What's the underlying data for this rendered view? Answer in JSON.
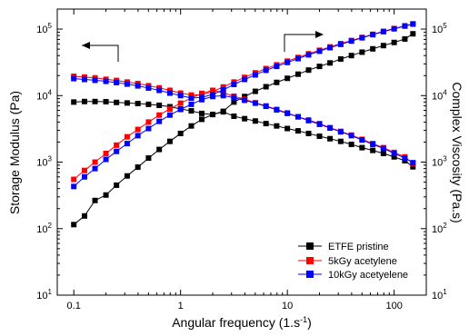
{
  "chart_data": {
    "type": "line",
    "xlabel": "Angular frequency (1.s",
    "xlabel_superscript": "-1",
    "xlabel_suffix": ")",
    "ylabel_left": "Storage Modulus (Pa)",
    "ylabel_right": "Complex Viscosity (Pa.s)",
    "x_scale": "log",
    "y_scale": "log",
    "xlim": [
      0.07,
      200
    ],
    "ylim": [
      10,
      200000
    ],
    "x_ticks": [
      {
        "value": 0.1,
        "label": "0.1"
      },
      {
        "value": 1,
        "label": "1"
      },
      {
        "value": 10,
        "label": "10"
      },
      {
        "value": 100,
        "label": "100"
      }
    ],
    "y_ticks": [
      {
        "value": 10,
        "base": "10",
        "exp": "1"
      },
      {
        "value": 100,
        "base": "10",
        "exp": "2"
      },
      {
        "value": 1000,
        "base": "10",
        "exp": "3"
      },
      {
        "value": 10000,
        "base": "10",
        "exp": "4"
      },
      {
        "value": 100000,
        "base": "10",
        "exp": "5"
      }
    ],
    "legend_position": "bottom-right",
    "grid": false,
    "x": [
      0.1,
      0.126,
      0.158,
      0.2,
      0.251,
      0.316,
      0.398,
      0.501,
      0.631,
      0.794,
      1,
      1.26,
      1.58,
      2,
      2.51,
      3.16,
      3.98,
      5.01,
      6.31,
      7.94,
      10,
      12.6,
      15.8,
      20,
      25.1,
      31.6,
      39.8,
      50.1,
      63.1,
      79.4,
      100,
      126,
      150
    ],
    "series": [
      {
        "name": "ETFE pristine",
        "color": "#000000",
        "modulus": [
          115,
          155,
          265,
          320,
          450,
          620,
          840,
          1150,
          1550,
          2050,
          2700,
          3500,
          4400,
          5200,
          5700,
          4900,
          4500,
          4150,
          3800,
          3500,
          3200,
          2950,
          2700,
          2450,
          2250,
          2050,
          1850,
          1650,
          1500,
          1350,
          1200,
          1050,
          850
        ],
        "viscosity": [
          8000,
          8150,
          8150,
          8100,
          7900,
          7750,
          7600,
          7400,
          7150,
          6800,
          6300,
          5900,
          5400,
          5200,
          5800,
          8000,
          9700,
          11600,
          13600,
          15800,
          18200,
          21000,
          24200,
          27500,
          31000,
          35500,
          40000,
          45000,
          50500,
          56500,
          63000,
          71000,
          85000
        ]
      },
      {
        "name": "5kGy acetylene",
        "color": "#ff0000",
        "modulus": [
          550,
          750,
          1000,
          1350,
          1800,
          2400,
          3100,
          4000,
          5100,
          6300,
          7700,
          9200,
          10800,
          12000,
          11000,
          9800,
          8800,
          7800,
          7000,
          6200,
          5500,
          4800,
          4300,
          3800,
          3300,
          2900,
          2550,
          2200,
          1900,
          1650,
          1400,
          1200,
          950
        ],
        "viscosity": [
          19500,
          19000,
          18500,
          17600,
          16900,
          16000,
          15200,
          14100,
          13100,
          12000,
          10900,
          10200,
          10300,
          11500,
          13500,
          16000,
          18800,
          22000,
          25500,
          29000,
          33000,
          37500,
          42500,
          48000,
          54000,
          60500,
          67500,
          75000,
          83500,
          92500,
          102000,
          112000,
          120000
        ]
      },
      {
        "name": "10kGy acetyelene",
        "color": "#0000ff",
        "modulus": [
          430,
          600,
          800,
          1100,
          1450,
          1900,
          2500,
          3200,
          4100,
          5100,
          6200,
          7400,
          8700,
          9700,
          10000,
          9300,
          8500,
          7700,
          6900,
          6100,
          5400,
          4800,
          4200,
          3700,
          3250,
          2850,
          2500,
          2150,
          1850,
          1600,
          1350,
          1150,
          980
        ],
        "viscosity": [
          18000,
          17500,
          17000,
          16400,
          15700,
          14900,
          14000,
          13000,
          12000,
          10900,
          10000,
          9200,
          9400,
          10400,
          12200,
          14700,
          17500,
          20500,
          24000,
          27500,
          31500,
          36000,
          41000,
          46500,
          52500,
          59000,
          66000,
          74000,
          82500,
          91500,
          101000,
          111000,
          119000
        ]
      }
    ]
  }
}
